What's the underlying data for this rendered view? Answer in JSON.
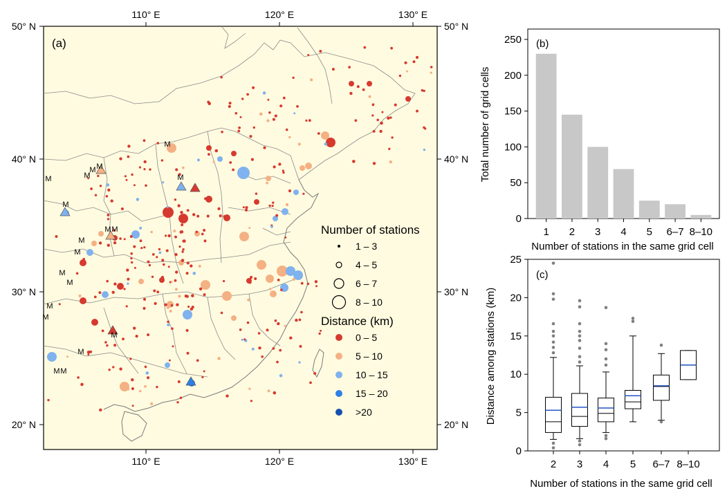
{
  "panel_a": {
    "label": "(a)",
    "lon_ticks": [
      "110° E",
      "120° E",
      "130° E"
    ],
    "lat_ticks": [
      "50° N",
      "40° N",
      "30° N",
      "20° N"
    ],
    "marker_text": "M",
    "legend": {
      "size_title": "Number of stations",
      "size_items": [
        "1 – 3",
        "4 – 5",
        "6 – 7",
        "8 – 10"
      ],
      "dist_title": "Distance (km)",
      "dist_items": [
        {
          "label": "0 – 5",
          "color": "#d63a2f"
        },
        {
          "label": "5 – 10",
          "color": "#f4b183"
        },
        {
          "label": "10 – 15",
          "color": "#7fb2ee"
        },
        {
          "label": "15 – 20",
          "color": "#2f7fe6"
        },
        {
          "label": ">20",
          "color": "#1550b0"
        }
      ]
    },
    "colors": {
      "land": "#fffbe0",
      "border": "#8a8a8a",
      "coast": "#7a7a7a"
    }
  },
  "chart_data": [
    {
      "type": "bar",
      "panel": "(b)",
      "categories": [
        "1",
        "2",
        "3",
        "4",
        "5",
        "6–7",
        "8–10"
      ],
      "values": [
        230,
        145,
        100,
        69,
        25,
        20,
        5
      ],
      "xlabel": "Number of stations in the same grid cell",
      "ylabel": "Total number of grid cells",
      "ylim": [
        0,
        250
      ],
      "yticks": [
        0,
        50,
        100,
        150,
        200,
        250
      ],
      "bar_color": "#c8c8c8"
    },
    {
      "type": "box",
      "panel": "(c)",
      "categories": [
        "2",
        "3",
        "4",
        "5",
        "6–7",
        "8–10"
      ],
      "boxes": [
        {
          "whislo": 1.5,
          "q1": 2.4,
          "med": 3.8,
          "mean": 5.3,
          "q3": 7.0,
          "whishi": 12.2,
          "fliers": [
            12.8,
            13.5,
            14.2,
            15.0,
            15.6,
            16.6,
            19.8,
            20.5,
            24.5,
            1.0,
            0.4
          ]
        },
        {
          "whislo": 1.6,
          "q1": 3.2,
          "med": 4.5,
          "mean": 5.7,
          "q3": 7.5,
          "whishi": 11.1,
          "fliers": [
            11.6,
            12.3,
            13.4,
            14.4,
            15.0,
            15.6,
            16.6,
            18.8,
            19.6,
            1.3,
            0.8
          ]
        },
        {
          "whislo": 2.4,
          "q1": 3.8,
          "med": 4.9,
          "mean": 5.6,
          "q3": 6.9,
          "whishi": 10.3,
          "fliers": [
            11.2,
            12.0,
            13.2,
            14.0,
            18.7,
            2.0,
            1.6
          ]
        },
        {
          "whislo": 3.8,
          "q1": 5.5,
          "med": 6.4,
          "mean": 7.2,
          "q3": 7.9,
          "whishi": 15.0,
          "fliers": [
            16.9,
            17.3
          ]
        },
        {
          "whislo": 4.0,
          "q1": 6.6,
          "med": 8.4,
          "mean": 8.5,
          "q3": 9.9,
          "whishi": 12.7,
          "fliers": [
            13.8,
            3.8
          ]
        },
        {
          "whislo": 9.3,
          "q1": 9.3,
          "med": 11.2,
          "mean": 11.2,
          "q3": 13.1,
          "whishi": 13.1,
          "fliers": []
        }
      ],
      "xlabel": "Number of stations in the same grid cell",
      "ylabel": "Distance among stations (km)",
      "ylim": [
        0,
        25
      ],
      "yticks": [
        0,
        5,
        10,
        15,
        20,
        25
      ],
      "mean_color": "#2255c4",
      "flier_color": "#808080"
    }
  ]
}
